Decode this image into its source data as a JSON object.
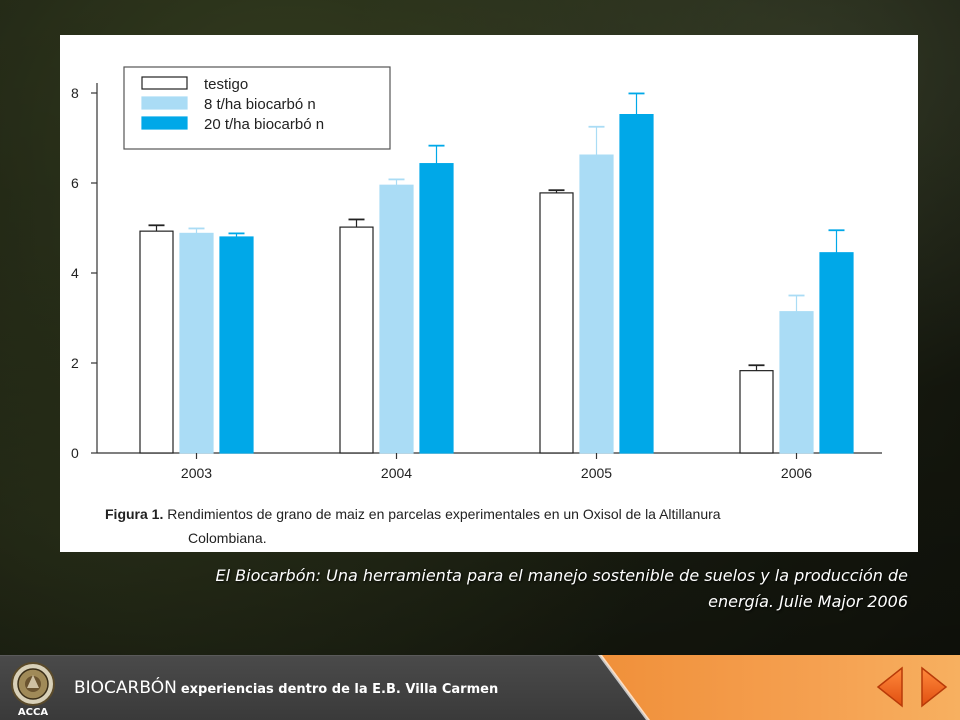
{
  "slide": {
    "caption": "El Biocarbón: Una herramienta para el manejo sostenible de suelos y la producción de energía. Julie Major 2006",
    "footer_title": "BIOCARBÓN",
    "footer_subtitle": "experiencias dentro de la E.B. Villa Carmen",
    "logo_text": "ACCA",
    "colors": {
      "accent_orange": "#f0903a",
      "footer_gray": "#404040"
    }
  },
  "chart_data": {
    "type": "bar",
    "title": "",
    "xlabel": "",
    "ylabel": "",
    "categories": [
      "2003",
      "2004",
      "2005",
      "2006"
    ],
    "ylim": [
      0,
      8
    ],
    "yticks": [
      0,
      2,
      4,
      6,
      8
    ],
    "legend_position": "top-left",
    "series": [
      {
        "name": "testigo",
        "color": "#ffffff",
        "stroke": "#222222",
        "values": [
          4.93,
          5.02,
          5.78,
          1.83
        ],
        "errors": [
          0.13,
          0.17,
          0.06,
          0.12
        ]
      },
      {
        "name": "8 t/ha biocarbó n",
        "color": "#aadcf5",
        "stroke": "#aadcf5",
        "values": [
          4.88,
          5.95,
          6.62,
          3.14
        ],
        "errors": [
          0.11,
          0.13,
          0.63,
          0.36
        ]
      },
      {
        "name": "20 t/ha biocarbó n",
        "color": "#00a8e8",
        "stroke": "#00a8e8",
        "values": [
          4.8,
          6.43,
          7.52,
          4.45
        ],
        "errors": [
          0.08,
          0.4,
          0.47,
          0.5
        ]
      }
    ],
    "figure_caption_bold": "Figura 1.",
    "figure_caption": "Rendimientos de grano de maiz en parcelas experimentales en un Oxisol de la Altillanura Colombiana."
  }
}
